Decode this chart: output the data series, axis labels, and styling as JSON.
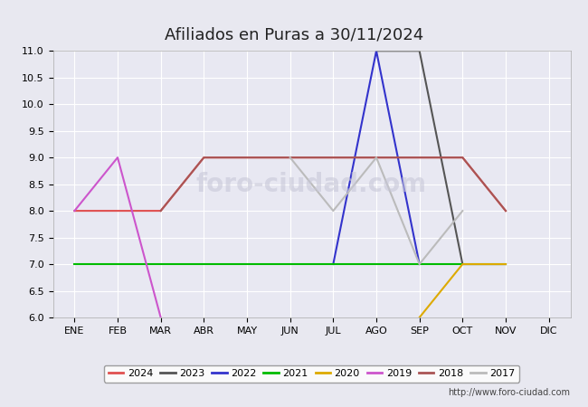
{
  "title": "Afiliados en Puras a 30/11/2024",
  "months": [
    "ENE",
    "FEB",
    "MAR",
    "ABR",
    "MAY",
    "JUN",
    "JUL",
    "AGO",
    "SEP",
    "OCT",
    "NOV",
    "DIC"
  ],
  "ylim": [
    6.0,
    11.0
  ],
  "yticks": [
    6.0,
    6.5,
    7.0,
    7.5,
    8.0,
    8.5,
    9.0,
    9.5,
    10.0,
    10.5,
    11.0
  ],
  "series": {
    "2024": {
      "color": "#e05050",
      "data": {
        "ENE": 8,
        "FEB": 8,
        "MAR": 8,
        "ABR": 9,
        "MAY": 9,
        "JUN": 9,
        "JUL": 9,
        "AGO": 9,
        "SEP": 9,
        "OCT": 9,
        "NOV": 8
      }
    },
    "2023": {
      "color": "#555555",
      "data": {
        "AGO": 11,
        "SEP": 11,
        "OCT": 7,
        "NOV": 7
      }
    },
    "2022": {
      "color": "#3333cc",
      "data": {
        "JUL": 7,
        "AGO": 11,
        "SEP": 7
      }
    },
    "2021": {
      "color": "#00bb00",
      "data": {
        "ENE": 7,
        "FEB": 7,
        "MAR": 7,
        "ABR": 7,
        "MAY": 7,
        "JUN": 7,
        "JUL": 7,
        "AGO": 7,
        "SEP": 7,
        "OCT": 7,
        "NOV": 7
      }
    },
    "2020": {
      "color": "#ddaa00",
      "data": {
        "SEP": 6,
        "OCT": 7,
        "NOV": 7
      }
    },
    "2019": {
      "color": "#cc55cc",
      "data": {
        "ENE": 8,
        "FEB": 9,
        "MAR": 6
      }
    },
    "2018": {
      "color": "#aa5555",
      "data": {
        "MAR": 8,
        "ABR": 9,
        "MAY": 9,
        "JUN": 9,
        "JUL": 9,
        "AGO": 9,
        "SEP": 9,
        "OCT": 9,
        "NOV": 8
      }
    },
    "2017": {
      "color": "#bbbbbb",
      "data": {
        "JUN": 9,
        "JUL": 8,
        "AGO": 9,
        "SEP": 7,
        "OCT": 8
      }
    }
  },
  "fig_bg_color": "#e8e8f0",
  "plot_bg_color": "#e8e8f2",
  "header_color": "#4466bb",
  "footer_color": "#4466bb",
  "title_text_color": "#222222",
  "footer_text": "http://www.foro-ciudad.com",
  "watermark": "foro-ciudad.com",
  "legend_years": [
    "2024",
    "2023",
    "2022",
    "2021",
    "2020",
    "2019",
    "2018",
    "2017"
  ]
}
